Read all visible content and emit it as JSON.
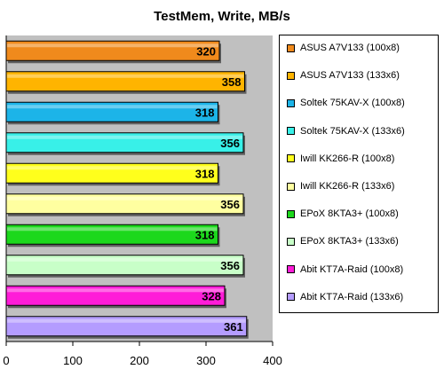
{
  "chart_data": {
    "type": "bar",
    "orientation": "horizontal",
    "title": "TestMem, Write, MB/s",
    "categories": [
      "ASUS A7V133 (100x8)",
      "ASUS A7V133 (133x6)",
      "Soltek 75KAV-X (100x8)",
      "Soltek 75KAV-X (133x6)",
      "Iwill KK266-R (100x8)",
      "Iwill KK266-R (133x6)",
      "EPoX 8KTA3+ (100x8)",
      "EPoX 8KTA3+ (133x6)",
      "Abit KT7A-Raid (100x8)",
      "Abit KT7A-Raid (133x6)"
    ],
    "values": [
      320,
      358,
      318,
      356,
      318,
      356,
      318,
      356,
      328,
      361
    ],
    "colors": [
      "#f08a1c",
      "#ffb400",
      "#1cb4e8",
      "#38f0e8",
      "#ffff1c",
      "#ffffa0",
      "#1cd81c",
      "#c8ffc8",
      "#ff1cd8",
      "#b49cff"
    ],
    "xlim": [
      0,
      400
    ],
    "xticks": [
      0,
      100,
      200,
      300,
      400
    ],
    "grid": false,
    "legend_position": "right"
  }
}
